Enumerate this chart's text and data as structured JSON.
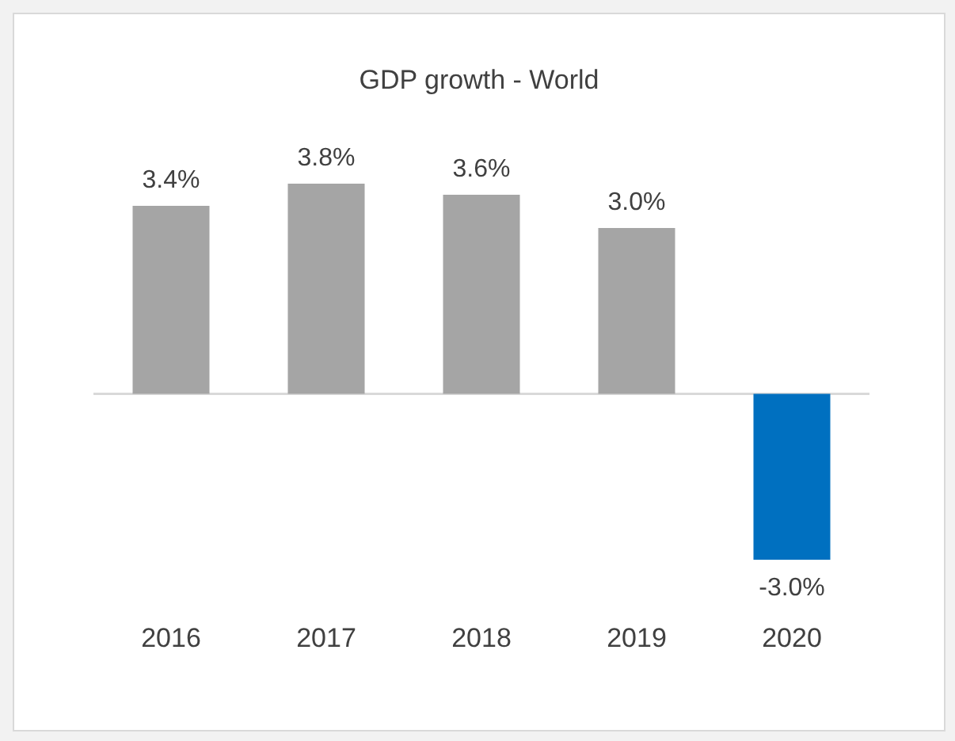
{
  "chart_data": {
    "type": "bar",
    "title": "GDP growth - World",
    "categories": [
      "2016",
      "2017",
      "2018",
      "2019",
      "2020"
    ],
    "values": [
      3.4,
      3.8,
      3.6,
      3.0,
      -3.0
    ],
    "colors": [
      "#a5a5a5",
      "#a5a5a5",
      "#a5a5a5",
      "#a5a5a5",
      "#0070c0"
    ],
    "value_labels": [
      "3.4%",
      "3.8%",
      "3.6%",
      "3.0%",
      "-3.0%"
    ],
    "tick_labels": "x",
    "grid": false,
    "legend": false
  }
}
